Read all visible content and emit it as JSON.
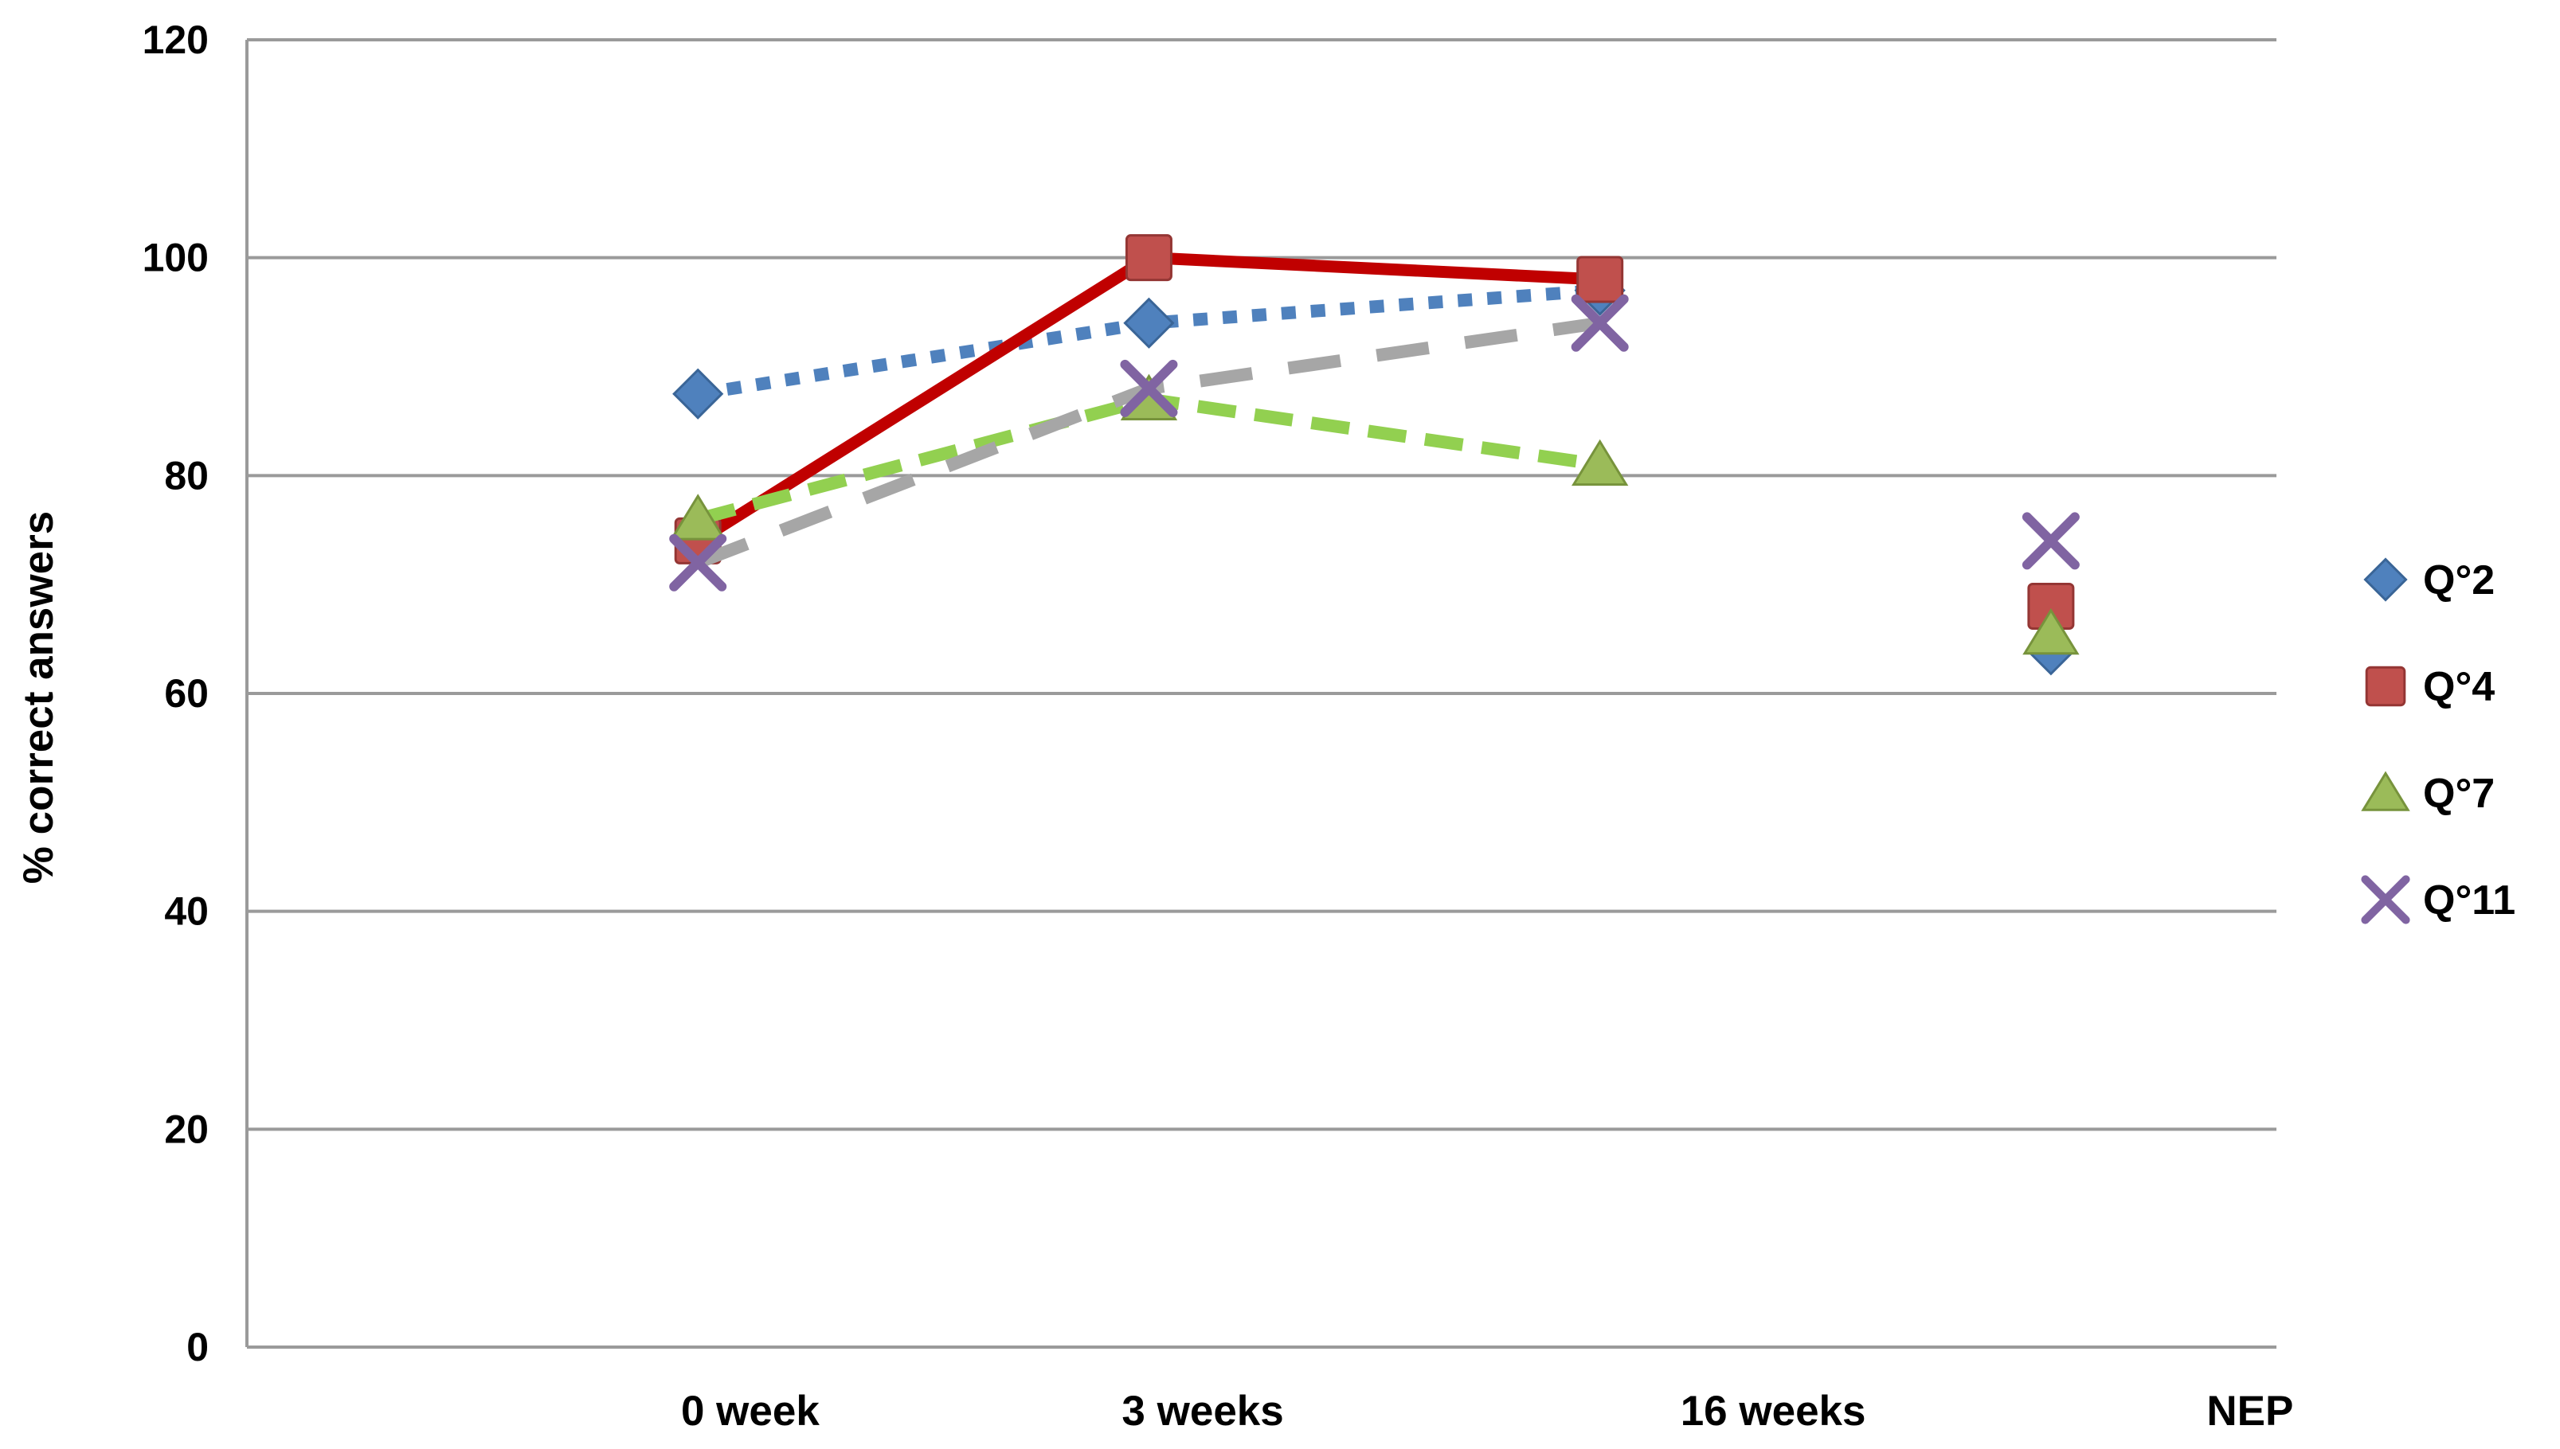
{
  "chart_data": {
    "type": "line",
    "title": "",
    "ylabel": "% correct answers",
    "xlabel": "",
    "ylim": [
      0,
      120
    ],
    "ytick_step": 20,
    "yticks": [
      0,
      20,
      40,
      60,
      80,
      100,
      120
    ],
    "categories": [
      "0 week",
      "3 weeks",
      "16 weeks",
      "NEP"
    ],
    "grid": "horizontal",
    "legend_position": "right",
    "lines_connect_first_n": 3,
    "series": [
      {
        "name": "Q°2",
        "slug": "q2",
        "marker": "diamond",
        "color": "#4F81BD",
        "edge": "#3A6597",
        "line_color": "#4F81BD",
        "line_style": "dotted",
        "values": [
          87.5,
          94,
          97,
          64
        ]
      },
      {
        "name": "Q°4",
        "slug": "q4",
        "marker": "square",
        "color": "#C0504D",
        "edge": "#943634",
        "line_color": "#C00000",
        "line_style": "solid",
        "values": [
          74,
          100,
          98,
          68
        ]
      },
      {
        "name": "Q°7",
        "slug": "q7",
        "marker": "triangle",
        "color": "#9BBB59",
        "edge": "#77933C",
        "line_color": "#92D050",
        "line_style": "dashed",
        "values": [
          76,
          87,
          81,
          65.5
        ]
      },
      {
        "name": "Q°11",
        "slug": "q11",
        "marker": "x",
        "color": "#8064A2",
        "edge": "#8064A2",
        "line_color": "#A6A6A6",
        "line_style": "long-dash",
        "values": [
          72,
          88,
          94,
          74
        ]
      }
    ],
    "colors": {
      "grid": "#9A9A9A",
      "axis": "#9A9A9A",
      "text": "#000000"
    }
  }
}
